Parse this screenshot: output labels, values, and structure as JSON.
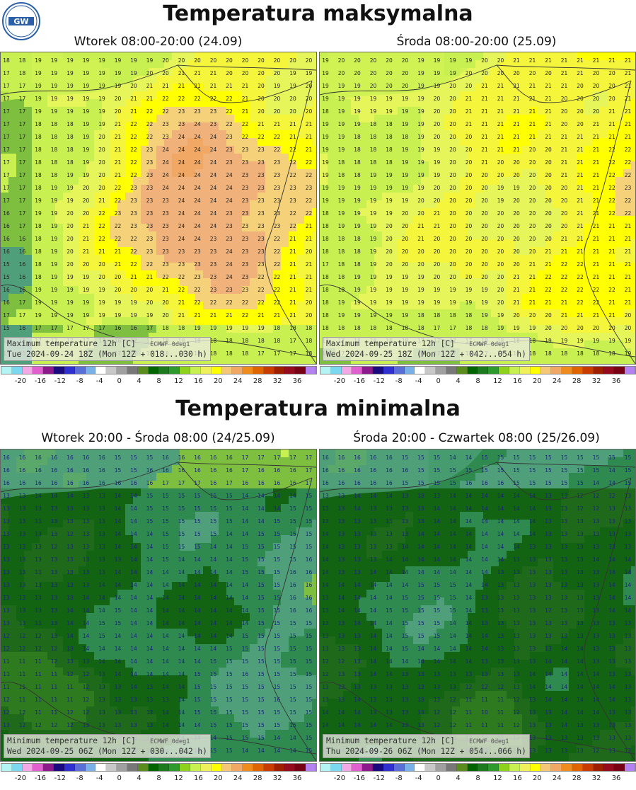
{
  "logo": {
    "text": "GW",
    "icon": "imgw-logo"
  },
  "sections": {
    "max_title": "Temperatura maksymalna",
    "min_title": "Temperatura minimalna"
  },
  "maps": [
    {
      "title": "Wtorek 08:00-20:00 (24.09)",
      "caption_line1": "Maximum temperature 12h [C]",
      "caption_source": "ECMWF 0deg1",
      "caption_line2": "Tue 2024-09-24 18Z (Mon 12Z + 018...030 h)",
      "kind": "max1",
      "value_range": [
        15,
        26
      ]
    },
    {
      "title": "Środa 08:00-20:00 (25.09)",
      "caption_line1": "Maximum temperature 12h [C]",
      "caption_source": "ECMWF 0deg1",
      "caption_line2": "Wed 2024-09-25 18Z (Mon 12Z + 042...054 h)",
      "kind": "max2",
      "value_range": [
        14,
        24
      ]
    },
    {
      "title": "Wtorek 20:00 - Środa 08:00 (24/25.09)",
      "caption_line1": "Minimum temperature 12h [C]",
      "caption_source": "ECMWF 0deg1",
      "caption_line2": "Wed 2024-09-25 06Z (Mon 12Z + 030...042 h)",
      "kind": "min1",
      "value_range": [
        6,
        17
      ]
    },
    {
      "title": "Środa 20:00 - Czwartek 08:00 (25/26.09)",
      "caption_line1": "Minimum temperature 12h [C]",
      "caption_source": "ECMWF 0deg1",
      "caption_line2": "Thu 2024-09-26 06Z (Mon 12Z + 054...066 h)",
      "kind": "min2",
      "value_range": [
        6,
        17
      ]
    }
  ],
  "scale": {
    "labels": [
      "-20",
      "-16",
      "-12",
      "-8",
      "-4",
      "0",
      "4",
      "8",
      "12",
      "16",
      "20",
      "24",
      "28",
      "32",
      "36"
    ],
    "colors": [
      "#b3f5f5",
      "#7ad8f0",
      "#f4a8e6",
      "#e060d0",
      "#8c1a8c",
      "#1a0a80",
      "#3030d0",
      "#5a6ed8",
      "#7ab0e8",
      "#ffffff",
      "#c8c8c8",
      "#a0a0a0",
      "#787878",
      "#5a8c1e",
      "#006400",
      "#1e7a1e",
      "#2e9a2e",
      "#8ed21e",
      "#c8f050",
      "#f0f05a",
      "#ffff00",
      "#f5c878",
      "#f0a864",
      "#f08c1e",
      "#e06400",
      "#c83c00",
      "#a01e00",
      "#960a1e",
      "#780014",
      "#b482f0"
    ]
  }
}
